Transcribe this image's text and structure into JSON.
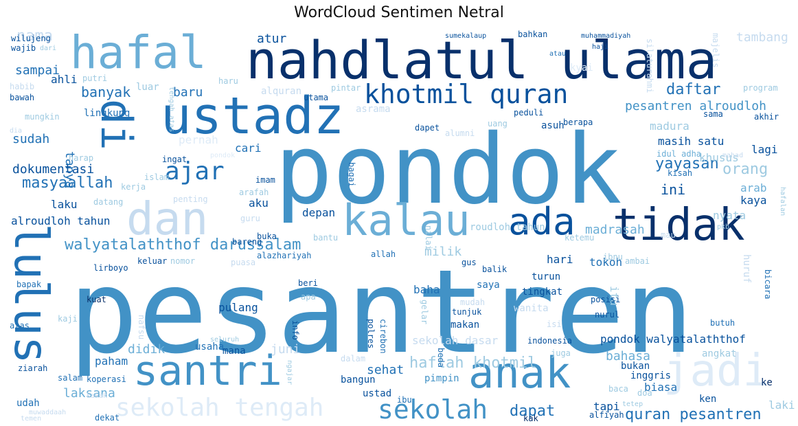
{
  "title": "WordCloud Sentimen Netral",
  "palette": [
    "#08306b",
    "#08519c",
    "#2171b5",
    "#4292c6",
    "#6baed6",
    "#9ecae1",
    "#c6dbef",
    "#deebf7"
  ],
  "words": [
    {
      "text": "pesantren",
      "shade": 3
    },
    {
      "text": "pondok",
      "shade": 3
    },
    {
      "text": "nahdlatul ulama",
      "shade": 0
    },
    {
      "text": "hafal",
      "shade": 4
    },
    {
      "text": "ustadz",
      "shade": 2
    },
    {
      "text": "lulus",
      "shade": 2
    },
    {
      "text": "di",
      "shade": 2
    },
    {
      "text": "khotmil quran",
      "shade": 1
    },
    {
      "text": "tidak",
      "shade": 0
    },
    {
      "text": "kalau",
      "shade": 4
    },
    {
      "text": "dan",
      "shade": 6
    },
    {
      "text": "ada",
      "shade": 1
    },
    {
      "text": "santri",
      "shade": 3
    },
    {
      "text": "anak",
      "shade": 3
    },
    {
      "text": "jadi",
      "shade": 7
    },
    {
      "text": "ajar",
      "shade": 2
    },
    {
      "text": "sekolah",
      "shade": 3
    },
    {
      "text": "sekolah tengah",
      "shade": 7
    },
    {
      "text": "walyatalaththof darussalam",
      "shade": 3
    },
    {
      "text": "haflah khotmil",
      "shade": 5
    },
    {
      "text": "quran pesantren",
      "shade": 2
    },
    {
      "text": "pesantren alroudloh",
      "shade": 3
    },
    {
      "text": "pondok walyatalaththof",
      "shade": 1
    },
    {
      "text": "daftar",
      "shade": 2
    },
    {
      "text": "masyaallah",
      "shade": 2
    },
    {
      "text": "dapat",
      "shade": 2
    },
    {
      "text": "banyak",
      "shade": 2
    },
    {
      "text": "nama",
      "shade": 6
    },
    {
      "text": "yayasan",
      "shade": 2
    },
    {
      "text": "orang",
      "shade": 5
    },
    {
      "text": "ini",
      "shade": 1
    },
    {
      "text": "sekolah dasar",
      "shade": 6
    },
    {
      "text": "madrasah",
      "shade": 4
    },
    {
      "text": "bahasa",
      "shade": 4
    },
    {
      "text": "atur",
      "shade": 1
    },
    {
      "text": "sampai",
      "shade": 2
    },
    {
      "text": "baru",
      "shade": 2
    },
    {
      "text": "tanya",
      "shade": 2
    },
    {
      "text": "sudah",
      "shade": 2
    },
    {
      "text": "dokumentasi",
      "shade": 1
    },
    {
      "text": "laksana",
      "shade": 4
    },
    {
      "text": "didik",
      "shade": 4
    },
    {
      "text": "juni",
      "shade": 6
    },
    {
      "text": "paham",
      "shade": 2
    },
    {
      "text": "sehat",
      "shade": 2
    },
    {
      "text": "milik",
      "shade": 5
    },
    {
      "text": "tambang",
      "shade": 6
    },
    {
      "text": "masih satu",
      "shade": 1
    },
    {
      "text": "khusus",
      "shade": 5
    },
    {
      "text": "lagi",
      "shade": 1
    },
    {
      "text": "arab",
      "shade": 4
    },
    {
      "text": "kaya",
      "shade": 1
    },
    {
      "text": "nyata",
      "shade": 5
    },
    {
      "text": "laku",
      "shade": 1
    },
    {
      "text": "alroudloh tahun",
      "shade": 1
    },
    {
      "text": "aku",
      "shade": 1
    },
    {
      "text": "depan",
      "shade": 1
    },
    {
      "text": "pulang",
      "shade": 1
    },
    {
      "text": "baha",
      "shade": 2
    },
    {
      "text": "hari",
      "shade": 1
    },
    {
      "text": "tokoh",
      "shade": 2
    },
    {
      "text": "itu",
      "shade": 5
    },
    {
      "text": "tapi",
      "shade": 1
    },
    {
      "text": "laki",
      "shade": 5
    },
    {
      "text": "biasa",
      "shade": 2
    },
    {
      "text": "ahli",
      "shade": 1
    },
    {
      "text": "luar",
      "shade": 5
    },
    {
      "text": "alquran",
      "shade": 6
    },
    {
      "text": "madura",
      "shade": 5
    },
    {
      "text": "asuh",
      "shade": 1
    },
    {
      "text": "asrama",
      "shade": 6
    },
    {
      "text": "cari",
      "shade": 2
    },
    {
      "text": "pernah",
      "shade": 7
    },
    {
      "text": "lingkung",
      "shade": 2
    },
    {
      "text": "idul adha",
      "shade": 4
    },
    {
      "text": "kisah",
      "shade": 2
    },
    {
      "text": "mana",
      "shade": 1
    },
    {
      "text": "usaha",
      "shade": 2
    },
    {
      "text": "bangun",
      "shade": 1
    },
    {
      "text": "pimpin",
      "shade": 3
    },
    {
      "text": "ustad",
      "shade": 1
    },
    {
      "text": "ibu",
      "shade": 2
    },
    {
      "text": "makan",
      "shade": 1
    },
    {
      "text": "tingkat",
      "shade": 1
    },
    {
      "text": "turun",
      "shade": 1
    },
    {
      "text": "saya",
      "shade": 2
    },
    {
      "text": "indonesia",
      "shade": 1
    },
    {
      "text": "angkat",
      "shade": 5
    },
    {
      "text": "bukan",
      "shade": 1
    },
    {
      "text": "inggris",
      "shade": 1
    },
    {
      "text": "ken",
      "shade": 1
    },
    {
      "text": "ke",
      "shade": 0
    },
    {
      "text": "doa",
      "shade": 5
    },
    {
      "text": "alfiyah",
      "shade": 1
    },
    {
      "text": "kak",
      "shade": 0
    },
    {
      "text": "udah",
      "shade": 2
    },
    {
      "text": "dekat",
      "shade": 2
    },
    {
      "text": "koperasi",
      "shade": 2
    },
    {
      "text": "salam",
      "shade": 2
    },
    {
      "text": "ziarah",
      "shade": 1
    },
    {
      "text": "atas",
      "shade": 2
    },
    {
      "text": "kaji",
      "shade": 5
    },
    {
      "text": "bapak",
      "shade": 2
    },
    {
      "text": "kuat",
      "shade": 0
    },
    {
      "text": "nomor",
      "shade": 5
    },
    {
      "text": "keluar",
      "shade": 1
    },
    {
      "text": "lirboyo",
      "shade": 1
    },
    {
      "text": "datang",
      "shade": 5
    },
    {
      "text": "kerja",
      "shade": 5
    },
    {
      "text": "islam",
      "shade": 5
    },
    {
      "text": "harap",
      "shade": 5
    },
    {
      "text": "ingat",
      "shade": 1
    },
    {
      "text": "bawah",
      "shade": 1
    },
    {
      "text": "habib",
      "shade": 6
    },
    {
      "text": "putri",
      "shade": 5
    },
    {
      "text": "mungkin",
      "shade": 5
    },
    {
      "text": "wajib",
      "shade": 1
    },
    {
      "text": "wilujeng",
      "shade": 1
    },
    {
      "text": "dari",
      "shade": 5
    },
    {
      "text": "bahkan",
      "shade": 1
    },
    {
      "text": "sumekalaup",
      "shade": 1
    },
    {
      "text": "muhammadiyah",
      "shade": 1
    },
    {
      "text": "haji",
      "shade": 1
    },
    {
      "text": "atau",
      "shade": 2
    },
    {
      "text": "kyai",
      "shade": 7
    },
    {
      "text": "silaturahmi",
      "shade": 6
    },
    {
      "text": "majelis",
      "shade": 6
    },
    {
      "text": "program",
      "shade": 5
    },
    {
      "text": "utama",
      "shade": 1
    },
    {
      "text": "pintar",
      "shade": 5
    },
    {
      "text": "haru",
      "shade": 5
    },
    {
      "text": "peduli",
      "shade": 1
    },
    {
      "text": "sama",
      "shade": 1
    },
    {
      "text": "berapa",
      "shade": 1
    },
    {
      "text": "akhir",
      "shade": 1
    },
    {
      "text": "dapet",
      "shade": 1
    },
    {
      "text": "alumni",
      "shade": 6
    },
    {
      "text": "uang",
      "shade": 5
    },
    {
      "text": "imam",
      "shade": 1
    },
    {
      "text": "arafah",
      "shade": 5
    },
    {
      "text": "bagai",
      "shade": 2
    },
    {
      "text": "nilai",
      "shade": 5
    },
    {
      "text": "penting",
      "shade": 6
    },
    {
      "text": "roudloh tahun",
      "shade": 5
    },
    {
      "text": "bareng",
      "shade": 1
    },
    {
      "text": "alazhariyah",
      "shade": 2
    },
    {
      "text": "buka",
      "shade": 1
    },
    {
      "text": "bantu",
      "shade": 5
    },
    {
      "text": "allah",
      "shade": 2
    },
    {
      "text": "guru",
      "shade": 6
    },
    {
      "text": "puasa",
      "shade": 6
    },
    {
      "text": "ibnu",
      "shade": 5
    },
    {
      "text": "ambai",
      "shade": 5
    },
    {
      "text": "ketemu",
      "shade": 5
    },
    {
      "text": "gus",
      "shade": 1
    },
    {
      "text": "balik",
      "shade": 1
    },
    {
      "text": "beri",
      "shade": 1
    },
    {
      "text": "apa",
      "shade": 5
    },
    {
      "text": "info",
      "shade": 1
    },
    {
      "text": "cirebon",
      "shade": 2
    },
    {
      "text": "polres",
      "shade": 1
    },
    {
      "text": "gelar",
      "shade": 5
    },
    {
      "text": "tunjuk",
      "shade": 1
    },
    {
      "text": "mudah",
      "shade": 6
    },
    {
      "text": "wanita",
      "shade": 6
    },
    {
      "text": "isi",
      "shade": 6
    },
    {
      "text": "posisi",
      "shade": 1
    },
    {
      "text": "nurul",
      "shade": 1
    },
    {
      "text": "butuh",
      "shade": 2
    },
    {
      "text": "bicara",
      "shade": 2
    },
    {
      "text": "beda",
      "shade": 2
    },
    {
      "text": "ngajar",
      "shade": 5
    },
    {
      "text": "dalam",
      "shade": 6
    },
    {
      "text": "seluruh",
      "shade": 5
    },
    {
      "text": "juga",
      "shade": 5
    },
    {
      "text": "baca",
      "shade": 5
    },
    {
      "text": "tetep",
      "shade": 5
    },
    {
      "text": "kakak",
      "shade": 6
    },
    {
      "text": "muwaddaah",
      "shade": 6
    },
    {
      "text": "temen",
      "shade": 6
    },
    {
      "text": "nafsu",
      "shade": 6
    },
    {
      "text": "hafalan",
      "shade": 5
    },
    {
      "text": "tengah atas",
      "shade": 5
    },
    {
      "text": "pkb",
      "shade": 5
    },
    {
      "text": "mau",
      "shade": 6
    },
    {
      "text": "huruf",
      "shade": 6
    },
    {
      "text": "pondok",
      "shade": 7
    },
    {
      "text": "dia",
      "shade": 6
    },
    {
      "text": "mahad",
      "shade": 6
    }
  ]
}
